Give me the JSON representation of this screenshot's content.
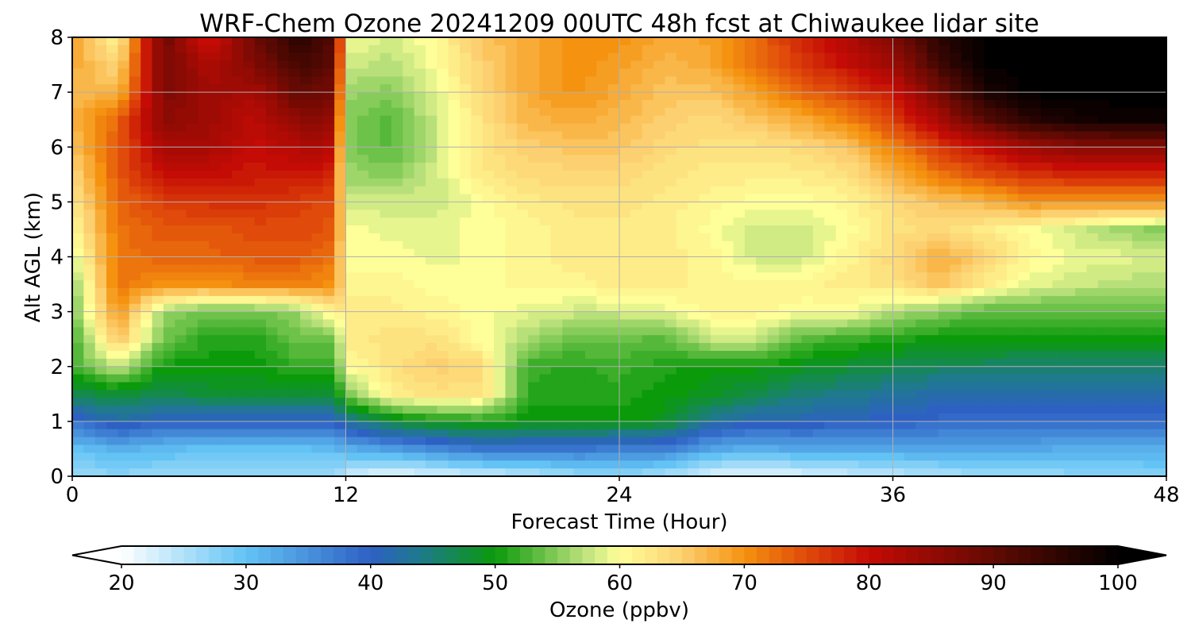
{
  "chart_data": {
    "type": "heatmap",
    "title": "WRF-Chem Ozone  20241209 00UTC 48h fcst at Chiwaukee lidar site",
    "xlabel": "Forecast Time (Hour)",
    "ylabel": "Alt AGL (km)",
    "xlim": [
      0,
      48
    ],
    "ylim": [
      0,
      8
    ],
    "x_ticks": [
      "0",
      "12",
      "24",
      "36",
      "48"
    ],
    "y_ticks": [
      "0",
      "1",
      "2",
      "3",
      "4",
      "5",
      "6",
      "7",
      "8"
    ],
    "grid": true,
    "x_hours": [
      0,
      2,
      4,
      6,
      8,
      10,
      11.5,
      12,
      14,
      16,
      18,
      20,
      22,
      24,
      26,
      28,
      30,
      32,
      34,
      36,
      38,
      40,
      42,
      44,
      46,
      48
    ],
    "y_km": [
      0,
      0.5,
      1,
      1.5,
      2,
      2.5,
      3,
      3.5,
      4,
      4.5,
      5,
      5.5,
      6,
      6.5,
      7,
      7.5,
      8
    ],
    "ozone_ppbv": [
      [
        26,
        27,
        26,
        27,
        27,
        26,
        26,
        23,
        21,
        22,
        23,
        24,
        26,
        27,
        25,
        22,
        21,
        22,
        23,
        24,
        25,
        26,
        26,
        27,
        27,
        28
      ],
      [
        30,
        32,
        31,
        30,
        30,
        30,
        31,
        32,
        34,
        36,
        38,
        38,
        38,
        37,
        37,
        33,
        32,
        33,
        33,
        33,
        33,
        33,
        33,
        32,
        32,
        32
      ],
      [
        38,
        42,
        40,
        40,
        40,
        40,
        40,
        43,
        48,
        50,
        51,
        50,
        50,
        50,
        49,
        43,
        41,
        41,
        40,
        40,
        39,
        39,
        39,
        39,
        39,
        39
      ],
      [
        47,
        48,
        47,
        48,
        48,
        48,
        48,
        54,
        62,
        63,
        63,
        51,
        51,
        51,
        50,
        49,
        47,
        45,
        44,
        43,
        42,
        42,
        42,
        42,
        42,
        42
      ],
      [
        52,
        58,
        50,
        50,
        50,
        52,
        52,
        60,
        63,
        65,
        64,
        52,
        51,
        52,
        51,
        50,
        50,
        49,
        48,
        47,
        46,
        46,
        45,
        45,
        45,
        45
      ],
      [
        52,
        66,
        54,
        51,
        51,
        54,
        54,
        62,
        63,
        63,
        60,
        56,
        54,
        54,
        53,
        58,
        58,
        53,
        52,
        51,
        50,
        50,
        50,
        50,
        50,
        50
      ],
      [
        54,
        70,
        56,
        54,
        54,
        56,
        62,
        62,
        62,
        61,
        60,
        59,
        58,
        58,
        59,
        61,
        61,
        60,
        60,
        57,
        55,
        53,
        53,
        53,
        53,
        53
      ],
      [
        55,
        72,
        70,
        70,
        71,
        71,
        70,
        61,
        61,
        60,
        60,
        61,
        61,
        62,
        62,
        61,
        61,
        61,
        62,
        63,
        66,
        62,
        59,
        58,
        57,
        57
      ],
      [
        58,
        72,
        73,
        73,
        74,
        74,
        72,
        60,
        60,
        59,
        60,
        61,
        62,
        62,
        62,
        61,
        58,
        58,
        61,
        64,
        68,
        65,
        61,
        59,
        59,
        58
      ],
      [
        60,
        72,
        74,
        74,
        75,
        75,
        74,
        60,
        59,
        59,
        60,
        61,
        62,
        62,
        62,
        60,
        58,
        58,
        60,
        63,
        64,
        62,
        60,
        58,
        56,
        55
      ],
      [
        62,
        73,
        76,
        77,
        77,
        76,
        75,
        58,
        58,
        58,
        60,
        62,
        63,
        63,
        62,
        61,
        60,
        60,
        61,
        64,
        66,
        67,
        70,
        70,
        70,
        70
      ],
      [
        64,
        74,
        80,
        80,
        79,
        79,
        78,
        56,
        55,
        58,
        62,
        64,
        64,
        64,
        63,
        62,
        62,
        62,
        63,
        67,
        72,
        75,
        77,
        78,
        78,
        78
      ],
      [
        66,
        74,
        83,
        83,
        80,
        82,
        82,
        55,
        53,
        58,
        63,
        65,
        66,
        66,
        64,
        63,
        63,
        64,
        66,
        71,
        76,
        80,
        84,
        86,
        86,
        86
      ],
      [
        67,
        73,
        86,
        84,
        81,
        86,
        85,
        55,
        53,
        58,
        63,
        67,
        68,
        67,
        65,
        64,
        66,
        68,
        71,
        76,
        83,
        91,
        96,
        98,
        99,
        99
      ],
      [
        67,
        67,
        87,
        84,
        83,
        90,
        88,
        56,
        55,
        59,
        64,
        68,
        70,
        68,
        66,
        66,
        69,
        73,
        76,
        79,
        88,
        97,
        100,
        100,
        100,
        100
      ],
      [
        68,
        64,
        88,
        82,
        87,
        93,
        90,
        58,
        57,
        60,
        65,
        68,
        70,
        69,
        67,
        68,
        72,
        76,
        80,
        84,
        93,
        100,
        100,
        100,
        100,
        100
      ],
      [
        69,
        61,
        89,
        78,
        89,
        96,
        91,
        60,
        58,
        61,
        66,
        68,
        70,
        70,
        68,
        69,
        73,
        78,
        82,
        87,
        96,
        100,
        100,
        100,
        100,
        100
      ]
    ],
    "colorbar": {
      "label": "Ozone  (ppbv)",
      "min": 20,
      "max": 100,
      "ticks": [
        "20",
        "30",
        "40",
        "50",
        "60",
        "70",
        "80",
        "90",
        "100"
      ],
      "extend": "both"
    },
    "colormap": [
      [
        20,
        "#ffffff"
      ],
      [
        30,
        "#62c3f4"
      ],
      [
        40,
        "#2e60c4"
      ],
      [
        44,
        "#1e7a8c"
      ],
      [
        50,
        "#0a9a0a"
      ],
      [
        57,
        "#b8e07a"
      ],
      [
        60,
        "#ffff99"
      ],
      [
        65,
        "#fcd070"
      ],
      [
        70,
        "#f5920f"
      ],
      [
        75,
        "#e04a0a"
      ],
      [
        80,
        "#c50b05"
      ],
      [
        90,
        "#620a03"
      ],
      [
        100,
        "#000000"
      ]
    ]
  }
}
